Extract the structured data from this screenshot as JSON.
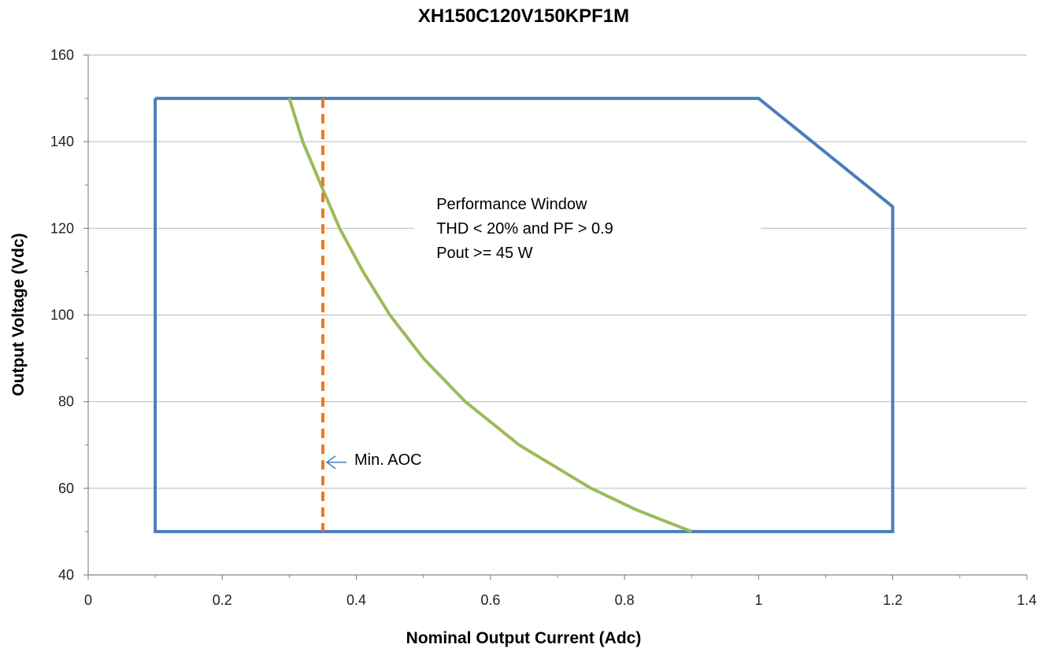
{
  "chart_data": {
    "type": "line",
    "title": "XH150C120V150KPF1M",
    "xlabel": "Nominal Output Current (Adc)",
    "ylabel": "Output Voltage (Vdc)",
    "xlim": [
      0,
      1.4
    ],
    "ylim": [
      40,
      160
    ],
    "x_ticks": [
      0,
      0.2,
      0.4,
      0.6,
      0.8,
      1,
      1.2,
      1.4
    ],
    "y_ticks": [
      40,
      60,
      80,
      100,
      120,
      140,
      160
    ],
    "grid": "horizontal",
    "legend": "none",
    "series": [
      {
        "color": "#4a7ebb",
        "style": "solid",
        "x": [
          0.1,
          1.0,
          1.2,
          1.2,
          0.1,
          0.1
        ],
        "y": [
          150,
          150,
          125,
          50,
          50,
          150
        ]
      },
      {
        "color": "#9bbb59",
        "style": "solid",
        "x": [
          0.3,
          0.32,
          0.35,
          0.375,
          0.41,
          0.45,
          0.5,
          0.5625,
          0.6429,
          0.75,
          0.818,
          0.9
        ],
        "y": [
          150,
          140,
          129,
          120,
          110,
          100,
          90,
          80,
          70,
          60,
          55,
          50
        ]
      },
      {
        "color": "#f07820",
        "style": "dashed",
        "x": [
          0.35,
          0.35
        ],
        "y": [
          150,
          50
        ]
      }
    ],
    "annotations": [
      {
        "lines": [
          "Performance Window",
          "THD < 20% and PF > 0.9",
          "Pout >= 45 W"
        ],
        "x": 0.51,
        "y": 125
      },
      {
        "text": "Min. AOC",
        "x": 0.35,
        "y": 66,
        "arrow": true
      }
    ]
  }
}
